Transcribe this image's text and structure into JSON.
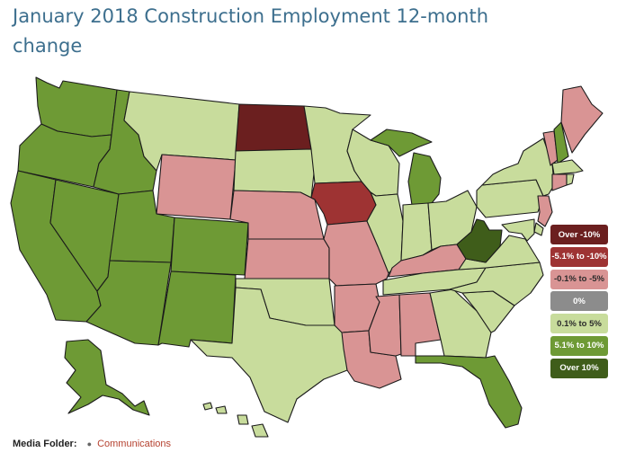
{
  "title": "January 2018 Construction Employment 12-month change",
  "colors": {
    "over_neg10": "#6b1f1f",
    "neg5_to_neg10": "#9e3333",
    "neg0_1_to_neg5": "#d99494",
    "zero": "#8c8c8c",
    "pos0_1_to_5": "#c8dc9c",
    "pos5_1_to_10": "#6e9a35",
    "over_pos10": "#3f5d1a"
  },
  "legend": [
    {
      "label": "Over -10%",
      "color": "#6b1f1f",
      "text_color": "#ffffff"
    },
    {
      "label": "-5.1% to -10%",
      "color": "#9e3333",
      "text_color": "#ffffff"
    },
    {
      "label": "-0.1% to -5%",
      "color": "#d99494",
      "text_color": "#2b2b2b"
    },
    {
      "label": "0%",
      "color": "#8c8c8c",
      "text_color": "#ffffff"
    },
    {
      "label": "0.1% to 5%",
      "color": "#c8dc9c",
      "text_color": "#2b2b2b"
    },
    {
      "label": "5.1% to 10%",
      "color": "#6e9a35",
      "text_color": "#ffffff"
    },
    {
      "label": "Over 10%",
      "color": "#3f5d1a",
      "text_color": "#ffffff"
    }
  ],
  "states": {
    "WA": "5.1% to 10%",
    "OR": "5.1% to 10%",
    "CA": "5.1% to 10%",
    "NV": "5.1% to 10%",
    "ID": "5.1% to 10%",
    "MT": "0.1% to 5%",
    "WY": "-0.1% to -5%",
    "UT": "5.1% to 10%",
    "AZ": "5.1% to 10%",
    "CO": "5.1% to 10%",
    "NM": "5.1% to 10%",
    "ND": "Over -10%",
    "SD": "0.1% to 5%",
    "NE": "-0.1% to -5%",
    "KS": "-0.1% to -5%",
    "OK": "0.1% to 5%",
    "TX": "0.1% to 5%",
    "MN": "0.1% to 5%",
    "IA": "-5.1% to -10%",
    "MO": "-0.1% to -5%",
    "AR": "-0.1% to -5%",
    "LA": "-0.1% to -5%",
    "WI": "0.1% to 5%",
    "IL": "0.1% to 5%",
    "MI": "5.1% to 10%",
    "IN": "0.1% to 5%",
    "OH": "0.1% to 5%",
    "KY": "-0.1% to -5%",
    "TN": "0.1% to 5%",
    "MS": "-0.1% to -5%",
    "AL": "-0.1% to -5%",
    "GA": "0.1% to 5%",
    "FL": "5.1% to 10%",
    "SC": "0.1% to 5%",
    "NC": "0.1% to 5%",
    "VA": "0.1% to 5%",
    "WV": "Over 10%",
    "PA": "0.1% to 5%",
    "NY": "0.1% to 5%",
    "VT": "-0.1% to -5%",
    "NH": "5.1% to 10%",
    "ME": "-0.1% to -5%",
    "MA": "0.1% to 5%",
    "RI": "0.1% to 5%",
    "CT": "-0.1% to -5%",
    "NJ": "-0.1% to -5%",
    "DE": "0.1% to 5%",
    "MD": "0.1% to 5%",
    "AK": "5.1% to 10%",
    "HI": "0.1% to 5%"
  },
  "footer": {
    "label": "Media Folder:",
    "link": "Communications"
  }
}
